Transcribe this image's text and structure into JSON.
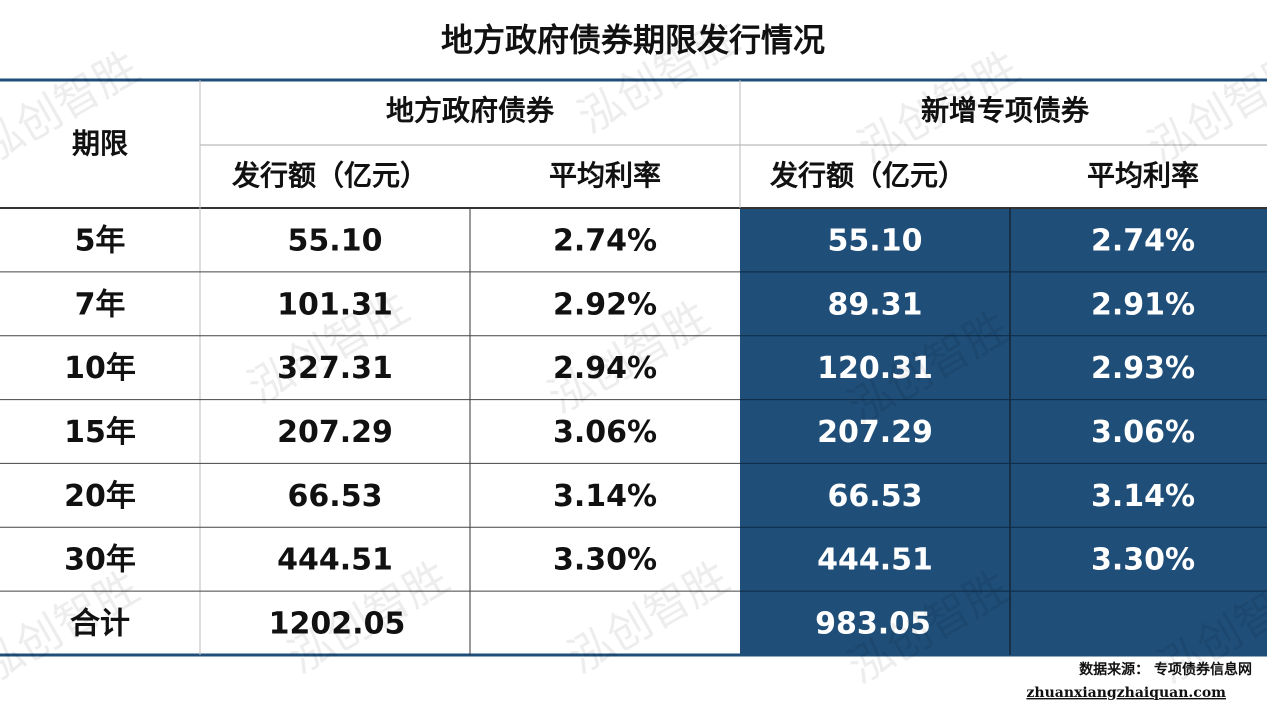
{
  "title": "地方政府债券期限发行情况",
  "watermark": "泓创智胜",
  "header": {
    "term": "期限",
    "group_local": "地方政府债券",
    "group_special": "新增专项债券",
    "local_amount": "发行额（亿元）",
    "local_rate": "平均利率",
    "special_amount": "发行额（亿元）",
    "special_rate": "平均利率"
  },
  "rows": [
    [
      "5年",
      "55.10",
      "2.74%",
      "55.10",
      "2.74%"
    ],
    [
      "7年",
      "101.31",
      "2.92%",
      "89.31",
      "2.91%"
    ],
    [
      "10年",
      "327.31",
      "2.94%",
      "120.31",
      "2.93%"
    ],
    [
      "15年",
      "207.29",
      "3.06%",
      "207.29",
      "3.06%"
    ],
    [
      "20年",
      "66.53",
      "3.14%",
      "66.53",
      "3.14%"
    ],
    [
      "30年",
      "444.51",
      "3.30%",
      "444.51",
      "3.30%"
    ]
  ],
  "total": {
    "label": "合计",
    "local_amount": "1202.05",
    "special_amount": "983.05"
  },
  "source": {
    "label": "数据来源： 专项债券信息网",
    "url": "zhuanxiangzhaiquan.com"
  }
}
